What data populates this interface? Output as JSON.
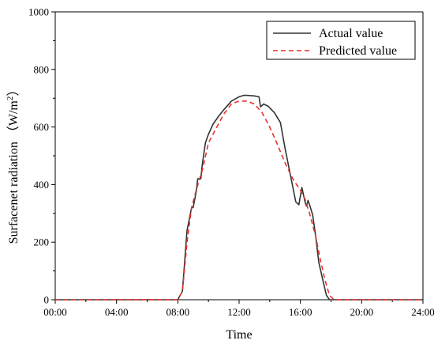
{
  "chart_data": {
    "type": "line",
    "xlabel": "Time",
    "ylabel": "Surfacenet radiation （W/m",
    "ylabel_sup": "2",
    "ylabel_close": "）",
    "x_unit": "hours",
    "xlim": [
      0,
      24
    ],
    "ylim": [
      0,
      1000
    ],
    "x_ticks": [
      0,
      4,
      8,
      12,
      16,
      20,
      24
    ],
    "x_tick_labels": [
      "00:00",
      "04:00",
      "08:00",
      "12:00",
      "16:00",
      "20:00",
      "24:00"
    ],
    "y_ticks": [
      0,
      200,
      400,
      600,
      800,
      1000
    ],
    "y_tick_labels": [
      "0",
      "200",
      "400",
      "600",
      "800",
      "1000"
    ],
    "legend_position": "top-right",
    "grid": false,
    "series": [
      {
        "name": "Actual value",
        "color": "#333333",
        "dash": "solid",
        "x": [
          0,
          8.0,
          8.3,
          8.6,
          8.9,
          9.0,
          9.2,
          9.3,
          9.5,
          9.6,
          9.8,
          10.0,
          10.3,
          10.7,
          11.0,
          11.5,
          12.0,
          12.3,
          12.5,
          13.0,
          13.3,
          13.4,
          13.6,
          13.9,
          14.3,
          14.7,
          15.0,
          15.4,
          15.7,
          15.9,
          16.1,
          16.3,
          16.4,
          16.5,
          16.6,
          16.8,
          17.0,
          17.2,
          17.5,
          17.7,
          17.9,
          18.1,
          24.0
        ],
        "y": [
          0,
          0,
          30,
          240,
          320,
          320,
          375,
          420,
          420,
          470,
          545,
          575,
          610,
          640,
          660,
          690,
          705,
          710,
          710,
          708,
          705,
          670,
          680,
          672,
          650,
          615,
          525,
          420,
          340,
          330,
          390,
          340,
          325,
          345,
          330,
          295,
          220,
          130,
          60,
          15,
          0,
          0,
          0
        ]
      },
      {
        "name": "Predicted value",
        "color": "#e8302a",
        "dash": "dashed",
        "x": [
          0,
          8.0,
          8.3,
          8.6,
          8.9,
          9.2,
          9.6,
          10.0,
          10.5,
          11.0,
          11.5,
          12.0,
          12.5,
          13.0,
          13.5,
          14.0,
          14.5,
          15.0,
          15.5,
          16.0,
          16.3,
          16.6,
          17.0,
          17.3,
          17.6,
          17.9,
          18.2,
          24.0
        ],
        "y": [
          0,
          0,
          30,
          200,
          320,
          380,
          450,
          545,
          595,
          645,
          680,
          690,
          690,
          680,
          650,
          600,
          540,
          475,
          420,
          380,
          350,
          300,
          220,
          140,
          70,
          15,
          0,
          0
        ]
      }
    ]
  }
}
